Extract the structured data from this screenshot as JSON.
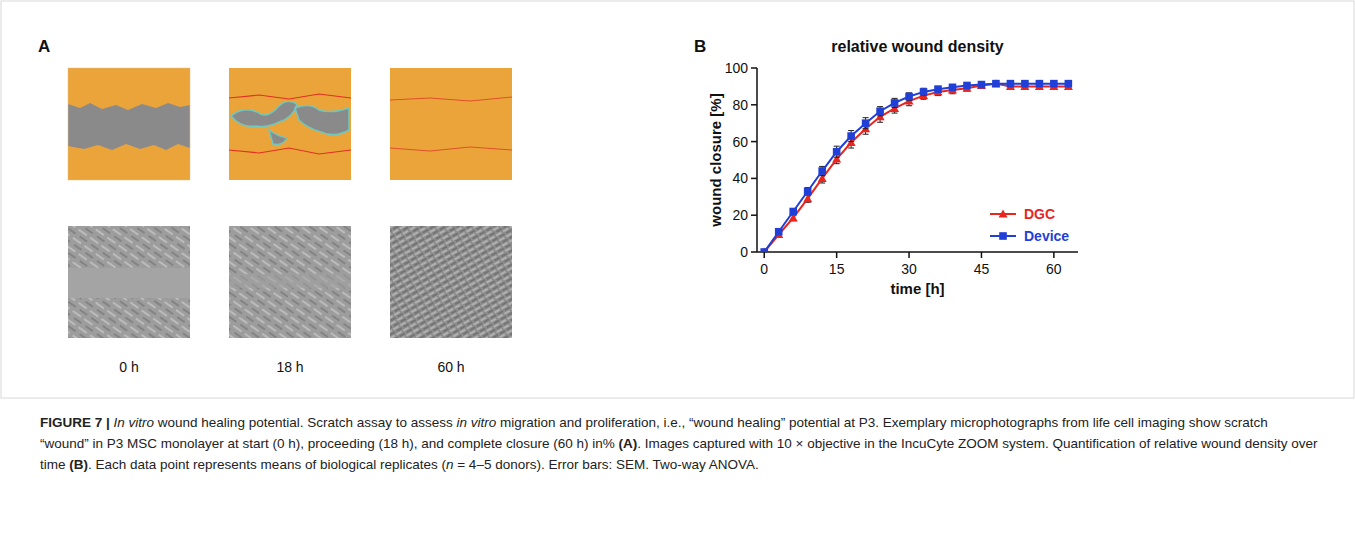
{
  "figure": {
    "panel_labels": [
      "A",
      "B"
    ],
    "time_labels": [
      "0 h",
      "18 h",
      "60 h"
    ],
    "caption": [
      {
        "text": "FIGURE 7 | ",
        "style": "bold"
      },
      {
        "text": "In vitro",
        "style": "italic"
      },
      {
        "text": " wound healing potential. Scratch assay to assess "
      },
      {
        "text": "in vitro",
        "style": "italic"
      },
      {
        "text": " migration and proliferation, i.e., “wound healing” potential at P3. Exemplary microphotographs from life cell imaging show scratch “wound” in P3 MSC monolayer at start (0 h), proceeding (18 h), and complete closure (60 h) in% "
      },
      {
        "text": "(A)",
        "style": "bold"
      },
      {
        "text": ". Images captured with 10 × objective in the IncuCyte ZOOM system. Quantification of relative wound density over time "
      },
      {
        "text": "(B)",
        "style": "bold"
      },
      {
        "text": ". Each data point represents means of biological replicates ("
      },
      {
        "text": "n",
        "style": "italic"
      },
      {
        "text": " = 4–5 donors). Error bars: SEM. Two-way ANOVA."
      }
    ]
  },
  "chart_data": {
    "type": "line",
    "title": "relative wound density",
    "x_label": "time [h]",
    "y_label": "wound closure [%]",
    "x": [
      0,
      3,
      6,
      9,
      12,
      15,
      18,
      21,
      24,
      27,
      30,
      33,
      36,
      39,
      42,
      45,
      48,
      51,
      54,
      57,
      60,
      63
    ],
    "xlim": [
      -1.5,
      65
    ],
    "xticks": [
      0,
      15,
      30,
      45,
      60
    ],
    "ylim": [
      0,
      100
    ],
    "yticks": [
      0,
      20,
      40,
      60,
      80,
      100
    ],
    "grid": false,
    "legend": "lower right",
    "series": [
      {
        "name": "DGC",
        "color": "#e8251f",
        "marker": "triangle",
        "values": [
          0,
          9.5,
          18.5,
          29,
          40,
          50.5,
          59.5,
          67,
          73.5,
          78,
          82,
          85,
          87,
          88,
          89,
          90.5,
          91.5,
          90,
          90,
          90,
          90,
          90
        ],
        "error": [
          0,
          1,
          1.5,
          2,
          2.5,
          2.5,
          3,
          3,
          3,
          2.5,
          2.5,
          2,
          2,
          2,
          1.5,
          1.5,
          1,
          1,
          1,
          1,
          1,
          1
        ]
      },
      {
        "name": "Device",
        "color": "#1f3fd6",
        "marker": "square",
        "values": [
          0,
          11,
          22,
          33,
          44,
          54.5,
          63,
          70,
          76.5,
          81,
          84.5,
          87,
          88.5,
          89.5,
          90.5,
          91,
          91.5,
          91.5,
          91.5,
          91.5,
          91.5,
          91.5
        ],
        "error": [
          0,
          1,
          1.5,
          2,
          2.5,
          3,
          3,
          3,
          2.5,
          2.5,
          2,
          2,
          1.5,
          1.5,
          1.5,
          1,
          1,
          1,
          1,
          1,
          1,
          1
        ]
      }
    ]
  }
}
